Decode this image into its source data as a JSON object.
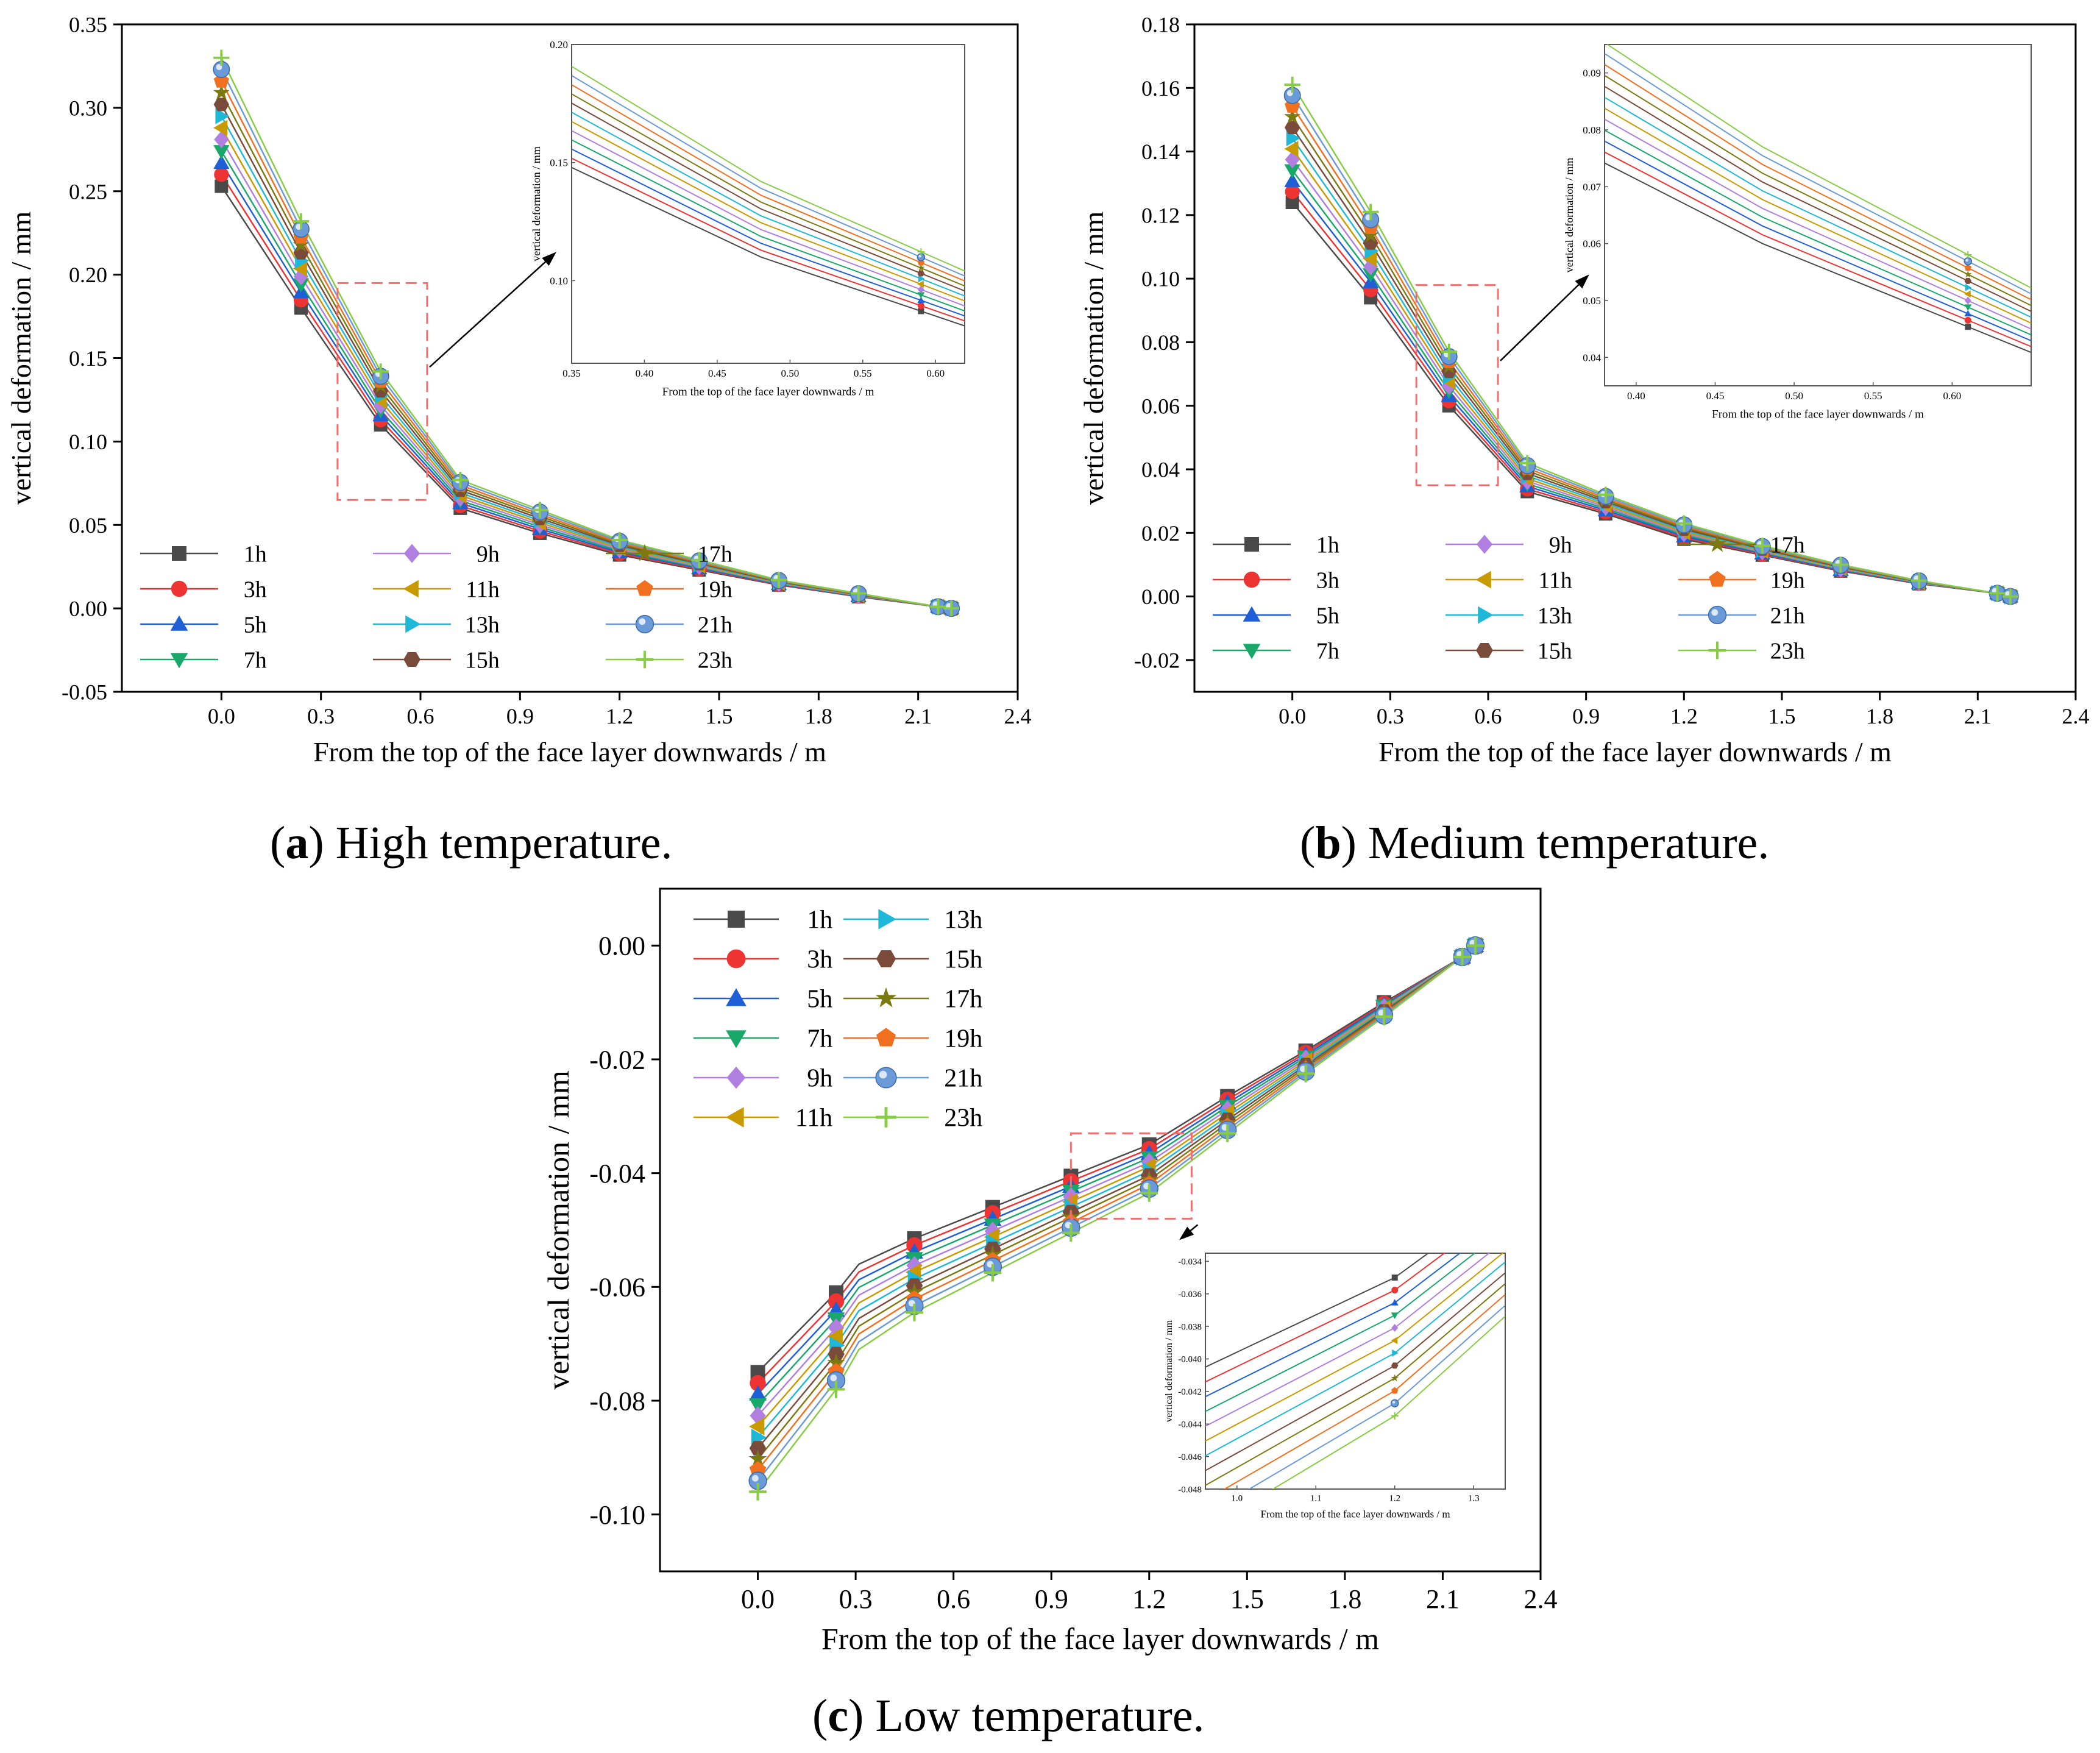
{
  "figure_title": "",
  "series_names": [
    "1h",
    "3h",
    "5h",
    "7h",
    "9h",
    "11h",
    "13h",
    "15h",
    "17h",
    "19h",
    "21h",
    "23h"
  ],
  "series_colors": [
    "#4a4a4a",
    "#ee3333",
    "#1f5fd6",
    "#1aa86a",
    "#b07fe0",
    "#c99a00",
    "#20b8d8",
    "#7a4a3a",
    "#7a7a10",
    "#f07020",
    "#6a9ad8",
    "#88cc44"
  ],
  "series_markers": [
    "square",
    "circle",
    "triangle-up",
    "triangle-down",
    "diamond",
    "triangle-left",
    "triangle-right",
    "hexagon",
    "star",
    "pentagon",
    "sphere",
    "plus"
  ],
  "chart_data": [
    {
      "id": "a",
      "type": "line",
      "caption_letter": "a",
      "caption_text": ") High temperature.",
      "caption_open": "(",
      "xlabel": "From the top of the face layer downwards / m",
      "ylabel": "vertical deformation / mm",
      "xlim": [
        -0.3,
        2.4
      ],
      "ylim": [
        -0.05,
        0.35
      ],
      "xticks": [
        "0.0",
        "0.3",
        "0.6",
        "0.9",
        "1.2",
        "1.5",
        "1.8",
        "2.1",
        "2.4"
      ],
      "xtick_values": [
        0,
        0.3,
        0.6,
        0.9,
        1.2,
        1.5,
        1.8,
        2.1,
        2.4
      ],
      "yticks": [
        "-0.05",
        "0.00",
        "0.05",
        "0.10",
        "0.15",
        "0.20",
        "0.25",
        "0.30",
        "0.35"
      ],
      "ytick_values": [
        -0.05,
        0,
        0.05,
        0.1,
        0.15,
        0.2,
        0.25,
        0.3,
        0.35
      ],
      "x": [
        0,
        0.24,
        0.48,
        0.72,
        0.96,
        1.2,
        1.44,
        1.68,
        1.92,
        2.16,
        2.2
      ],
      "base": [
        0.253,
        0.18,
        0.11,
        0.06,
        0.045,
        0.032,
        0.023,
        0.014,
        0.007,
        0.001,
        0.0
      ],
      "top": [
        0.33,
        0.232,
        0.142,
        0.077,
        0.059,
        0.041,
        0.029,
        0.017,
        0.009,
        0.001,
        0.0
      ],
      "legend_columns": 3,
      "legend_position": "bottom-left",
      "zoom_box": {
        "x": [
          0.35,
          0.62
        ],
        "y": [
          0.065,
          0.195
        ]
      },
      "inset": {
        "xlabel": "From the top of the face layer downwards / m",
        "ylabel": "vertical deformation / mm",
        "xlim": [
          0.35,
          0.62
        ],
        "ylim": [
          0.065,
          0.2
        ],
        "xticks": [
          "0.35",
          "0.40",
          "0.45",
          "0.50",
          "0.55",
          "0.60"
        ],
        "xtick_values": [
          0.35,
          0.4,
          0.45,
          0.5,
          0.55,
          0.6
        ],
        "yticks": [
          "0.10",
          "0.15",
          "0.20"
        ],
        "ytick_values": [
          0.1,
          0.15,
          0.2
        ],
        "marker_x": 0.59
      }
    },
    {
      "id": "b",
      "type": "line",
      "caption_letter": "b",
      "caption_text": ") Medium temperature.",
      "caption_open": "(",
      "xlabel": "From the top of the face layer downwards / m",
      "ylabel": "vertical deformation / mm",
      "xlim": [
        -0.3,
        2.4
      ],
      "ylim": [
        -0.03,
        0.18
      ],
      "xticks": [
        "0.0",
        "0.3",
        "0.6",
        "0.9",
        "1.2",
        "1.5",
        "1.8",
        "2.1",
        "2.4"
      ],
      "xtick_values": [
        0,
        0.3,
        0.6,
        0.9,
        1.2,
        1.5,
        1.8,
        2.1,
        2.4
      ],
      "yticks": [
        "-0.02",
        "0.00",
        "0.02",
        "0.04",
        "0.06",
        "0.08",
        "0.10",
        "0.12",
        "0.14",
        "0.16",
        "0.18"
      ],
      "ytick_values": [
        -0.02,
        0,
        0.02,
        0.04,
        0.06,
        0.08,
        0.1,
        0.12,
        0.14,
        0.16,
        0.18
      ],
      "x": [
        0,
        0.24,
        0.48,
        0.72,
        0.96,
        1.2,
        1.44,
        1.68,
        1.92,
        2.16,
        2.2
      ],
      "base": [
        0.124,
        0.094,
        0.06,
        0.033,
        0.026,
        0.018,
        0.013,
        0.008,
        0.004,
        0.001,
        0.0
      ],
      "top": [
        0.161,
        0.121,
        0.077,
        0.042,
        0.032,
        0.023,
        0.016,
        0.01,
        0.005,
        0.001,
        0.0
      ],
      "legend_columns": 3,
      "legend_position": "bottom-left",
      "zoom_box": {
        "x": [
          0.38,
          0.63
        ],
        "y": [
          0.035,
          0.098
        ]
      },
      "inset": {
        "xlabel": "From the top of the face layer downwards / m",
        "ylabel": "vertical deformation / mm",
        "xlim": [
          0.38,
          0.65
        ],
        "ylim": [
          0.035,
          0.095
        ],
        "xticks": [
          "0.40",
          "0.45",
          "0.50",
          "0.55",
          "0.60"
        ],
        "xtick_values": [
          0.4,
          0.45,
          0.5,
          0.55,
          0.6
        ],
        "yticks": [
          "0.04",
          "0.05",
          "0.06",
          "0.07",
          "0.08",
          "0.09"
        ],
        "ytick_values": [
          0.04,
          0.05,
          0.06,
          0.07,
          0.08,
          0.09
        ],
        "marker_x": 0.61
      }
    },
    {
      "id": "c",
      "type": "line",
      "caption_letter": "c",
      "caption_text": ") Low temperature.",
      "caption_open": "(",
      "xlabel": "From the top of the face layer downwards / m",
      "ylabel": "vertical deformation / mm",
      "xlim": [
        -0.3,
        2.4
      ],
      "ylim": [
        -0.11,
        0.01
      ],
      "xticks": [
        "0.0",
        "0.3",
        "0.6",
        "0.9",
        "1.2",
        "1.5",
        "1.8",
        "2.1",
        "2.4"
      ],
      "xtick_values": [
        0,
        0.3,
        0.6,
        0.9,
        1.2,
        1.5,
        1.8,
        2.1,
        2.4
      ],
      "yticks": [
        "-0.10",
        "-0.08",
        "-0.06",
        "-0.04",
        "-0.02",
        "0.00"
      ],
      "ytick_values": [
        -0.1,
        -0.08,
        -0.06,
        -0.04,
        -0.02,
        0
      ],
      "x": [
        0,
        0.24,
        0.31,
        0.48,
        0.72,
        0.96,
        1.2,
        1.44,
        1.68,
        1.92,
        2.16,
        2.2
      ],
      "base": [
        -0.075,
        -0.061,
        -0.056,
        -0.0515,
        -0.046,
        -0.0405,
        -0.035,
        -0.0265,
        -0.0185,
        -0.01,
        -0.002,
        0.0
      ],
      "top": [
        -0.096,
        -0.078,
        -0.071,
        -0.0645,
        -0.0575,
        -0.0505,
        -0.0435,
        -0.033,
        -0.0225,
        -0.0125,
        -0.002,
        0.0
      ],
      "marker_skip_index": 2,
      "legend_columns": 2,
      "legend_position": "top-left",
      "zoom_box": {
        "x": [
          0.96,
          1.33
        ],
        "y": [
          -0.048,
          -0.033
        ]
      },
      "inset": {
        "xlabel": "From the top of the face layer downwards / m",
        "ylabel": "vertical deformation / mm",
        "xlim": [
          0.96,
          1.34
        ],
        "ylim": [
          -0.048,
          -0.0335
        ],
        "xticks": [
          "1.0",
          "1.1",
          "1.2",
          "1.3"
        ],
        "xtick_values": [
          1.0,
          1.1,
          1.2,
          1.3
        ],
        "yticks": [
          "-0.034",
          "-0.036",
          "-0.038",
          "-0.040",
          "-0.042",
          "-0.044",
          "-0.046",
          "-0.048"
        ],
        "ytick_values": [
          -0.034,
          -0.036,
          -0.038,
          -0.04,
          -0.042,
          -0.044,
          -0.046,
          -0.048
        ],
        "marker_x": 1.2
      }
    }
  ]
}
